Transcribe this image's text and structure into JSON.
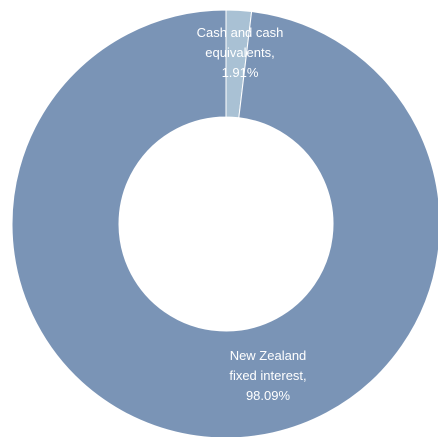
{
  "chart_data": {
    "type": "pie",
    "variant": "donut",
    "title": "",
    "slices": [
      {
        "label_lines": [
          "Cash and cash",
          "equivalents,",
          "1.91%"
        ],
        "name": "Cash and cash equivalents",
        "value": 1.91,
        "color": "#a9c1d4"
      },
      {
        "label_lines": [
          "New Zealand",
          "fixed interest,",
          "98.09%"
        ],
        "name": "New Zealand fixed interest",
        "value": 98.09,
        "color": "#7a94b6"
      }
    ],
    "legend": "none",
    "start_angle": "top, clockwise"
  }
}
